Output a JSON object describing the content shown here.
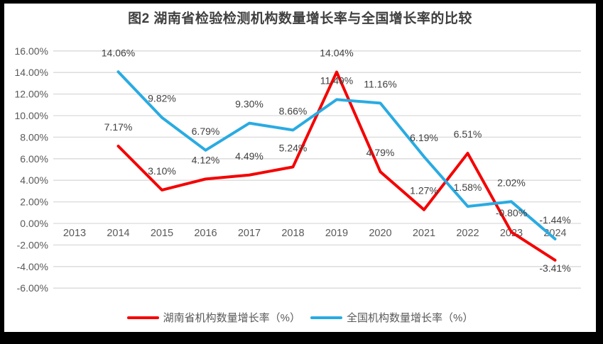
{
  "chart_data": {
    "type": "line",
    "title": "图2 湖南省检验检测机构数量增长率与全国增长率的比较",
    "categories": [
      "2013",
      "2014",
      "2015",
      "2016",
      "2017",
      "2018",
      "2019",
      "2020",
      "2021",
      "2022",
      "2023",
      "2024"
    ],
    "series": [
      {
        "name": "湖南省机构数量增长率（%）",
        "color": "#f40000",
        "values": [
          null,
          7.17,
          3.1,
          4.12,
          4.49,
          5.24,
          14.04,
          4.79,
          1.27,
          6.51,
          -0.8,
          -3.41
        ],
        "labels": [
          null,
          "7.17%",
          "3.10%",
          "4.12%",
          "4.49%",
          "5.24%",
          "14.04%",
          "4.79%",
          "1.27%",
          "6.51%",
          "-0.80%",
          "-3.41%"
        ],
        "label_below_indices": [
          11
        ]
      },
      {
        "name": "全国机构数量增长率（%）",
        "color": "#29abe2",
        "values": [
          null,
          14.06,
          9.82,
          6.79,
          9.3,
          8.66,
          11.49,
          11.16,
          6.19,
          1.58,
          2.02,
          -1.44
        ],
        "labels": [
          null,
          "14.06%",
          "9.82%",
          "6.79%",
          "9.30%",
          "8.66%",
          "11.49%",
          "11.16%",
          "6.19%",
          "1.58%",
          "2.02%",
          "-1.44%"
        ],
        "label_below_indices": []
      }
    ],
    "ylim": [
      -6,
      16
    ],
    "ytick_step": 2,
    "ytick_labels": [
      "16.00%",
      "14.00%",
      "12.00%",
      "10.00%",
      "8.00%",
      "6.00%",
      "4.00%",
      "2.00%",
      "0.00%",
      "-2.00%",
      "-4.00%",
      "-6.00%"
    ],
    "grid": true,
    "legend_position": "bottom",
    "colors": {
      "grid": "#d9d9d9",
      "axis_text": "#595959",
      "data_label_text": "#404040",
      "title_text": "#3f3f3f",
      "frame": "#000000",
      "background": "#ffffff"
    }
  }
}
